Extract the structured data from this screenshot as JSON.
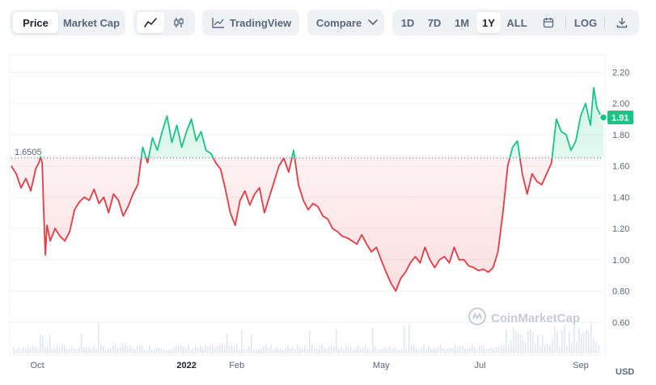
{
  "toolbar": {
    "view_tabs": {
      "price": "Price",
      "market_cap": "Market Cap",
      "active": "price"
    },
    "chart_style": {
      "line_icon": "line-chart-icon",
      "candle_icon": "candlestick-icon",
      "active": "line"
    },
    "tradingview": {
      "label": "TradingView",
      "icon": "tradingview-icon"
    },
    "compare": {
      "label": "Compare",
      "icon": "chevron-down-icon"
    },
    "ranges": [
      "1D",
      "7D",
      "1M",
      "1Y",
      "ALL"
    ],
    "active_range": "1Y",
    "calendar_icon": "calendar-icon",
    "log_label": "LOG",
    "download_icon": "download-icon"
  },
  "chart_data": {
    "type": "line",
    "title": "",
    "xlabel": "",
    "ylabel": "",
    "currency": "USD",
    "ylim": [
      0.4,
      2.3
    ],
    "yticks": [
      0.6,
      0.8,
      1.0,
      1.2,
      1.4,
      1.6,
      1.8,
      2.0,
      2.2
    ],
    "ytick_labels": [
      "0.60",
      "0.80",
      "1.00",
      "1.20",
      "1.40",
      "1.60",
      "1.80",
      "2.00",
      "2.20"
    ],
    "xtick_labels": [
      "Oct",
      "2022",
      "Feb",
      "May",
      "Jul",
      "Sep"
    ],
    "x_start": "2021-09-15",
    "x_end": "2022-09-15",
    "xtick_dates": [
      "2021-10-01",
      "2022-01-01",
      "2022-02-01",
      "2022-05-01",
      "2022-07-01",
      "2022-09-01"
    ],
    "reference_value": 1.6505,
    "reference_label": "1.6505",
    "current_value": 1.91,
    "current_label": "1.91",
    "grid": true,
    "legend": "none",
    "colors": {
      "up": "#16c784",
      "down": "#ea3943",
      "fill_down": "#fde8ea",
      "fill_up": "#e3f8ef",
      "volume": "#cfd6e4"
    },
    "series": [
      {
        "x": [
          "2021-09-15",
          "2021-09-18",
          "2021-09-21",
          "2021-09-24",
          "2021-09-27",
          "2021-09-30",
          "2021-10-02",
          "2021-10-03",
          "2021-10-04",
          "2021-10-05",
          "2021-10-06",
          "2021-10-07",
          "2021-10-09",
          "2021-10-12",
          "2021-10-15",
          "2021-10-18",
          "2021-10-21",
          "2021-10-24",
          "2021-10-27",
          "2021-10-30",
          "2021-11-02",
          "2021-11-05",
          "2021-11-08",
          "2021-11-11",
          "2021-11-14",
          "2021-11-17",
          "2021-11-20",
          "2021-11-23",
          "2021-11-26",
          "2021-11-29",
          "2021-12-02",
          "2021-12-05",
          "2021-12-08",
          "2021-12-11",
          "2021-12-14",
          "2021-12-17",
          "2021-12-20",
          "2021-12-23",
          "2021-12-26",
          "2021-12-29",
          "2022-01-01",
          "2022-01-04",
          "2022-01-07",
          "2022-01-10",
          "2022-01-13",
          "2022-01-16",
          "2022-01-19",
          "2022-01-22",
          "2022-01-25",
          "2022-01-28",
          "2022-01-31",
          "2022-02-03",
          "2022-02-06",
          "2022-02-09",
          "2022-02-12",
          "2022-02-15",
          "2022-02-18",
          "2022-02-21",
          "2022-02-24",
          "2022-02-27",
          "2022-03-02",
          "2022-03-05",
          "2022-03-08",
          "2022-03-11",
          "2022-03-14",
          "2022-03-17",
          "2022-03-20",
          "2022-03-23",
          "2022-03-26",
          "2022-03-29",
          "2022-04-01",
          "2022-04-04",
          "2022-04-07",
          "2022-04-10",
          "2022-04-13",
          "2022-04-16",
          "2022-04-19",
          "2022-04-22",
          "2022-04-25",
          "2022-04-28",
          "2022-05-01",
          "2022-05-04",
          "2022-05-07",
          "2022-05-10",
          "2022-05-13",
          "2022-05-16",
          "2022-05-19",
          "2022-05-22",
          "2022-05-25",
          "2022-05-28",
          "2022-05-31",
          "2022-06-03",
          "2022-06-06",
          "2022-06-09",
          "2022-06-12",
          "2022-06-15",
          "2022-06-18",
          "2022-06-21",
          "2022-06-24",
          "2022-06-27",
          "2022-06-30",
          "2022-07-03",
          "2022-07-06",
          "2022-07-09",
          "2022-07-12",
          "2022-07-15",
          "2022-07-18",
          "2022-07-21",
          "2022-07-24",
          "2022-07-27",
          "2022-07-30",
          "2022-08-02",
          "2022-08-05",
          "2022-08-08",
          "2022-08-11",
          "2022-08-14",
          "2022-08-17",
          "2022-08-20",
          "2022-08-23",
          "2022-08-26",
          "2022-08-29",
          "2022-09-01",
          "2022-09-04",
          "2022-09-07",
          "2022-09-09",
          "2022-09-11",
          "2022-09-13",
          "2022-09-15"
        ],
        "y": [
          1.6,
          1.55,
          1.46,
          1.52,
          1.44,
          1.58,
          1.62,
          1.66,
          1.62,
          1.3,
          1.03,
          1.22,
          1.12,
          1.2,
          1.15,
          1.12,
          1.18,
          1.32,
          1.37,
          1.4,
          1.38,
          1.45,
          1.36,
          1.4,
          1.3,
          1.42,
          1.38,
          1.28,
          1.34,
          1.42,
          1.48,
          1.72,
          1.62,
          1.78,
          1.7,
          1.82,
          1.92,
          1.75,
          1.86,
          1.72,
          1.82,
          1.9,
          1.76,
          1.82,
          1.7,
          1.68,
          1.62,
          1.58,
          1.45,
          1.3,
          1.22,
          1.38,
          1.44,
          1.35,
          1.42,
          1.46,
          1.3,
          1.4,
          1.5,
          1.6,
          1.65,
          1.56,
          1.7,
          1.48,
          1.38,
          1.32,
          1.36,
          1.34,
          1.28,
          1.26,
          1.2,
          1.18,
          1.15,
          1.14,
          1.12,
          1.1,
          1.16,
          1.1,
          1.05,
          1.08,
          1.0,
          0.92,
          0.85,
          0.8,
          0.88,
          0.92,
          0.98,
          1.02,
          0.98,
          1.08,
          1.0,
          0.95,
          1.0,
          1.02,
          0.98,
          1.08,
          1.0,
          1.0,
          0.96,
          0.95,
          0.93,
          0.94,
          0.92,
          0.95,
          1.05,
          1.3,
          1.6,
          1.72,
          1.76,
          1.55,
          1.42,
          1.55,
          1.5,
          1.48,
          1.55,
          1.62,
          1.9,
          1.82,
          1.8,
          1.7,
          1.76,
          1.92,
          2.0,
          1.86,
          2.1,
          1.97,
          1.93,
          1.91
        ]
      }
    ],
    "volume_present": true
  },
  "watermark": {
    "text": "CoinMarketCap",
    "icon": "coinmarketcap-logo-icon"
  }
}
